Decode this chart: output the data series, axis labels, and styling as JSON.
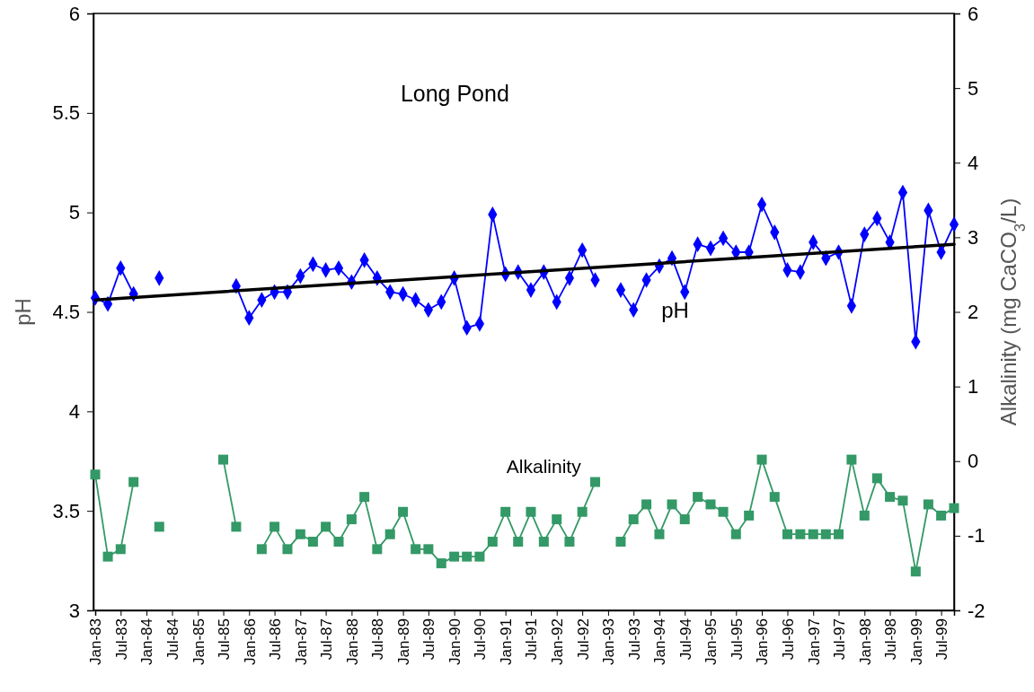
{
  "chart_data": {
    "type": "line",
    "title": "Long Pond",
    "ylabel": "pH",
    "y2label": "Alkalinity (mg CaCO$_{3}$/L)",
    "x": [
      "1983-01",
      "1983-04",
      "1983-07",
      "1983-10",
      "1984-01",
      "1984-04",
      "1984-07",
      "1984-10",
      "1985-01",
      "1985-04",
      "1985-07",
      "1985-10",
      "1986-01",
      "1986-04",
      "1986-07",
      "1986-10",
      "1987-01",
      "1987-04",
      "1987-07",
      "1987-10",
      "1988-01",
      "1988-04",
      "1988-07",
      "1988-10",
      "1989-01",
      "1989-04",
      "1989-07",
      "1989-10",
      "1990-01",
      "1990-04",
      "1990-07",
      "1990-10",
      "1991-01",
      "1991-04",
      "1991-07",
      "1991-10",
      "1992-01",
      "1992-04",
      "1992-07",
      "1992-10",
      "1993-01",
      "1993-04",
      "1993-07",
      "1993-10",
      "1994-01",
      "1994-04",
      "1994-07",
      "1994-10",
      "1995-01",
      "1995-04",
      "1995-07",
      "1995-10",
      "1996-01",
      "1996-04",
      "1996-07",
      "1996-10",
      "1997-01",
      "1997-04",
      "1997-07",
      "1997-10",
      "1998-01",
      "1998-04",
      "1998-07",
      "1998-10",
      "1999-01",
      "1999-04",
      "1999-07",
      "1999-10"
    ],
    "xlim": [
      "1983-01",
      "1999-10"
    ],
    "xticks": [
      {
        "value": "1983-01",
        "label": "Jan-83"
      },
      {
        "value": "1983-07",
        "label": "Jul-83"
      },
      {
        "value": "1984-01",
        "label": "Jan-84"
      },
      {
        "value": "1984-07",
        "label": "Jul-84"
      },
      {
        "value": "1985-01",
        "label": "Jan-85"
      },
      {
        "value": "1985-07",
        "label": "Jul-85"
      },
      {
        "value": "1986-01",
        "label": "Jan-86"
      },
      {
        "value": "1986-07",
        "label": "Jul-86"
      },
      {
        "value": "1987-01",
        "label": "Jan-87"
      },
      {
        "value": "1987-07",
        "label": "Jul-87"
      },
      {
        "value": "1988-01",
        "label": "Jan-88"
      },
      {
        "value": "1988-07",
        "label": "Jul-88"
      },
      {
        "value": "1989-01",
        "label": "Jan-89"
      },
      {
        "value": "1989-07",
        "label": "Jul-89"
      },
      {
        "value": "1990-01",
        "label": "Jan-90"
      },
      {
        "value": "1990-07",
        "label": "Jul-90"
      },
      {
        "value": "1991-01",
        "label": "Jan-91"
      },
      {
        "value": "1991-07",
        "label": "Jul-91"
      },
      {
        "value": "1992-01",
        "label": "Jan-92"
      },
      {
        "value": "1992-07",
        "label": "Jul-92"
      },
      {
        "value": "1993-01",
        "label": "Jan-93"
      },
      {
        "value": "1993-07",
        "label": "Jul-93"
      },
      {
        "value": "1994-01",
        "label": "Jan-94"
      },
      {
        "value": "1994-07",
        "label": "Jul-94"
      },
      {
        "value": "1995-01",
        "label": "Jan-95"
      },
      {
        "value": "1995-07",
        "label": "Jul-95"
      },
      {
        "value": "1996-01",
        "label": "Jan-96"
      },
      {
        "value": "1996-07",
        "label": "Jul-96"
      },
      {
        "value": "1997-01",
        "label": "Jan-97"
      },
      {
        "value": "1997-07",
        "label": "Jul-97"
      },
      {
        "value": "1998-01",
        "label": "Jan-98"
      },
      {
        "value": "1998-07",
        "label": "Jul-98"
      },
      {
        "value": "1999-01",
        "label": "Jan-99"
      },
      {
        "value": "1999-07",
        "label": "Jul-99"
      }
    ],
    "ylim": [
      3,
      6
    ],
    "yticks": [
      3,
      3.5,
      4,
      4.5,
      5,
      5.5,
      6
    ],
    "y2lim": [
      -2,
      6
    ],
    "y2ticks": [
      -2,
      -1,
      0,
      1,
      2,
      3,
      4,
      5,
      6
    ],
    "series": [
      {
        "name": "pH",
        "color": "#0000ff",
        "marker": "diamond",
        "values": [
          4.57,
          4.54,
          4.72,
          4.59,
          null,
          4.67,
          null,
          null,
          null,
          null,
          null,
          4.63,
          4.47,
          4.56,
          4.6,
          4.6,
          4.68,
          4.74,
          4.71,
          4.72,
          4.65,
          4.76,
          4.67,
          4.6,
          4.59,
          4.56,
          4.51,
          4.55,
          4.67,
          4.42,
          4.44,
          4.99,
          4.69,
          4.7,
          4.61,
          4.7,
          4.55,
          4.67,
          4.81,
          4.66,
          null,
          4.61,
          4.51,
          4.66,
          4.73,
          4.77,
          4.6,
          4.84,
          4.82,
          4.87,
          4.8,
          4.8,
          5.04,
          4.9,
          4.71,
          4.7,
          4.85,
          4.77,
          4.8,
          4.53,
          4.89,
          4.97,
          4.85,
          5.1,
          4.35,
          5.01,
          4.8,
          4.94
        ]
      },
      {
        "name": "Alkalinity",
        "color": "#339966",
        "marker": "square",
        "axis": "y2",
        "values": [
          -0.18,
          -1.28,
          -1.18,
          -0.28,
          null,
          -0.88,
          null,
          null,
          null,
          null,
          0.02,
          -0.88,
          null,
          -1.18,
          -0.88,
          -1.18,
          -0.98,
          -1.08,
          -0.88,
          -1.08,
          -0.78,
          -0.48,
          -1.18,
          -0.98,
          -0.68,
          -1.18,
          -1.18,
          -1.37,
          -1.28,
          -1.28,
          -1.28,
          -1.08,
          -0.68,
          -1.08,
          -0.68,
          -1.08,
          -0.78,
          -1.08,
          -0.68,
          -0.28,
          null,
          -1.08,
          -0.78,
          -0.58,
          -0.98,
          -0.58,
          -0.78,
          -0.48,
          -0.58,
          -0.68,
          -0.98,
          -0.73,
          0.02,
          -0.48,
          -0.98,
          -0.98,
          -0.98,
          -0.98,
          -0.98,
          0.02,
          -0.73,
          -0.23,
          -0.48,
          -0.53,
          -1.48,
          -0.58,
          -0.73,
          -0.63
        ]
      },
      {
        "type": "line",
        "color": "#000000",
        "marker": "none",
        "x": [
          "1983-01",
          "1999-10"
        ],
        "values": [
          4.56,
          4.84
        ]
      }
    ]
  }
}
